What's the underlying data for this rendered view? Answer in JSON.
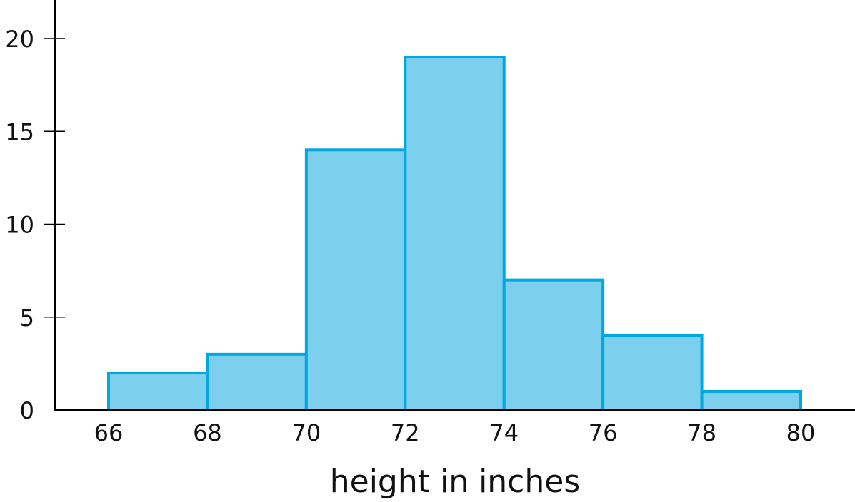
{
  "chart_data": {
    "type": "bar",
    "subtype": "histogram",
    "title": "",
    "xlabel": "height in inches",
    "ylabel": "",
    "bins": [
      {
        "start": 66,
        "end": 68,
        "count": 2
      },
      {
        "start": 68,
        "end": 70,
        "count": 3
      },
      {
        "start": 70,
        "end": 72,
        "count": 14
      },
      {
        "start": 72,
        "end": 74,
        "count": 19
      },
      {
        "start": 74,
        "end": 76,
        "count": 7
      },
      {
        "start": 76,
        "end": 78,
        "count": 4
      },
      {
        "start": 78,
        "end": 80,
        "count": 1
      }
    ],
    "xticks": [
      "66",
      "68",
      "70",
      "72",
      "74",
      "76",
      "78",
      "80"
    ],
    "yticks": [
      "0",
      "5",
      "10",
      "15",
      "20"
    ],
    "xlim": [
      63.4,
      84
    ],
    "ylim": [
      0,
      22
    ],
    "grid": false,
    "colors": {
      "fill": "#7dcfee",
      "stroke": "#00a8e0",
      "axis": "#000000"
    }
  }
}
